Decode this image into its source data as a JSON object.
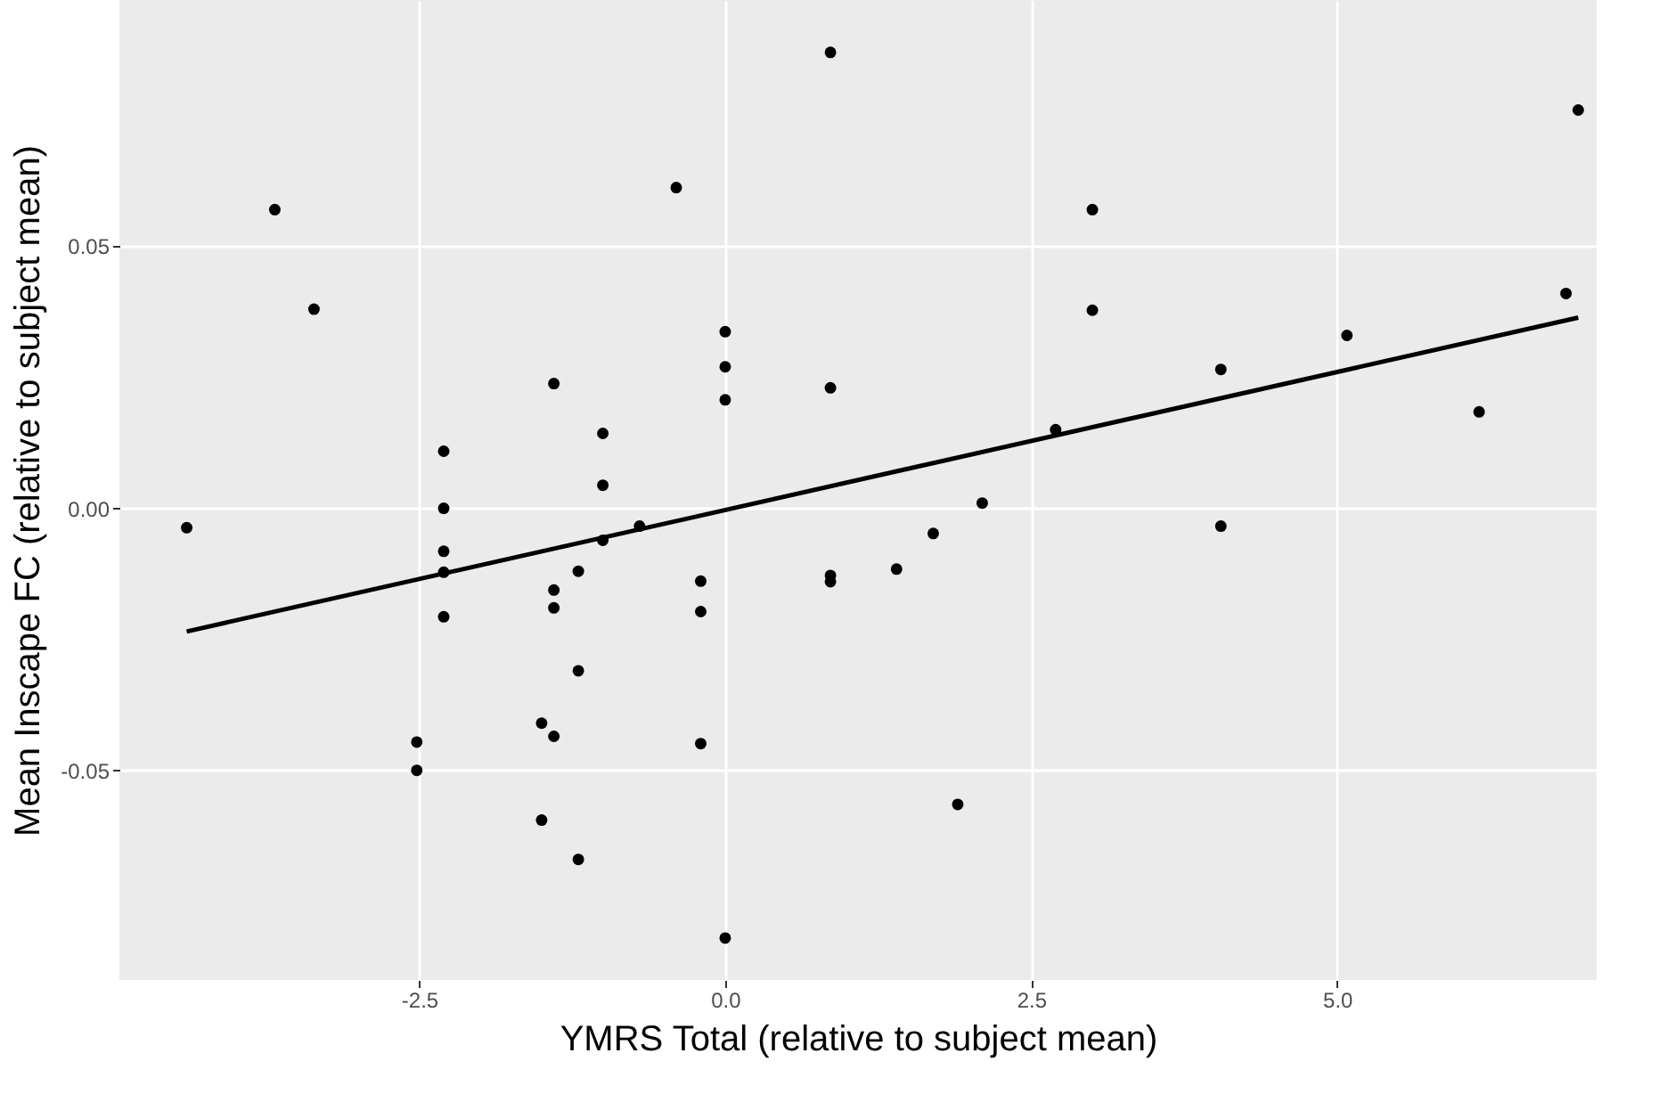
{
  "chart_data": {
    "type": "scatter",
    "xlabel": "YMRS Total (relative to subject mean)",
    "ylabel": "Mean Inscape FC (relative to subject mean)",
    "xlim": [
      -4.95,
      7.12
    ],
    "ylim": [
      -0.09,
      0.097
    ],
    "xticks": [
      {
        "value": -2.5,
        "label": "-2.5"
      },
      {
        "value": 0,
        "label": "0.0"
      },
      {
        "value": 2.5,
        "label": "2.5"
      },
      {
        "value": 5,
        "label": "5.0"
      }
    ],
    "yticks": [
      {
        "value": -0.05,
        "label": "-0.05"
      },
      {
        "value": 0,
        "label": "0.00"
      },
      {
        "value": 0.05,
        "label": "0.05"
      }
    ],
    "grid": true,
    "series": [
      {
        "color": "#000000",
        "marker": "circle",
        "x": [
          -4.4,
          -3.68,
          -3.36,
          -2.52,
          -2.52,
          -2.3,
          -2.3,
          -2.3,
          -2.3,
          -2.3,
          -1.5,
          -1.5,
          -1.4,
          -1.4,
          -1.4,
          -1.4,
          -1.2,
          -1.2,
          -1.2,
          -1.0,
          -1.0,
          -1.0,
          -0.7,
          -0.4,
          -0.2,
          -0.2,
          -0.2,
          0,
          0,
          0,
          0,
          0.86,
          0.86,
          0.86,
          0.86,
          1.4,
          1.7,
          1.9,
          2.1,
          2.7,
          3.0,
          3.0,
          4.05,
          4.05,
          5.08,
          6.16,
          6.87,
          6.97
        ],
        "values": [
          -0.0037,
          0.057,
          0.038,
          -0.0446,
          -0.05,
          0.0109,
          0.0,
          -0.0082,
          -0.0122,
          -0.0207,
          -0.0595,
          -0.041,
          0.0238,
          -0.0435,
          -0.0156,
          -0.019,
          -0.031,
          -0.067,
          -0.012,
          0.0143,
          0.0044,
          -0.0061,
          -0.0034,
          0.0612,
          -0.0139,
          -0.0197,
          -0.0449,
          0.0337,
          0.027,
          0.0207,
          -0.082,
          0.087,
          0.023,
          -0.0128,
          -0.014,
          -0.0116,
          -0.0048,
          -0.0565,
          0.001,
          0.015,
          0.0378,
          0.057,
          0.0265,
          -0.0034,
          0.033,
          0.0184,
          0.041,
          0.076
        ]
      },
      {
        "type": "line",
        "color": "#000000",
        "x": [
          -4.4,
          6.97
        ],
        "values": [
          -0.0235,
          0.0364
        ]
      }
    ]
  }
}
